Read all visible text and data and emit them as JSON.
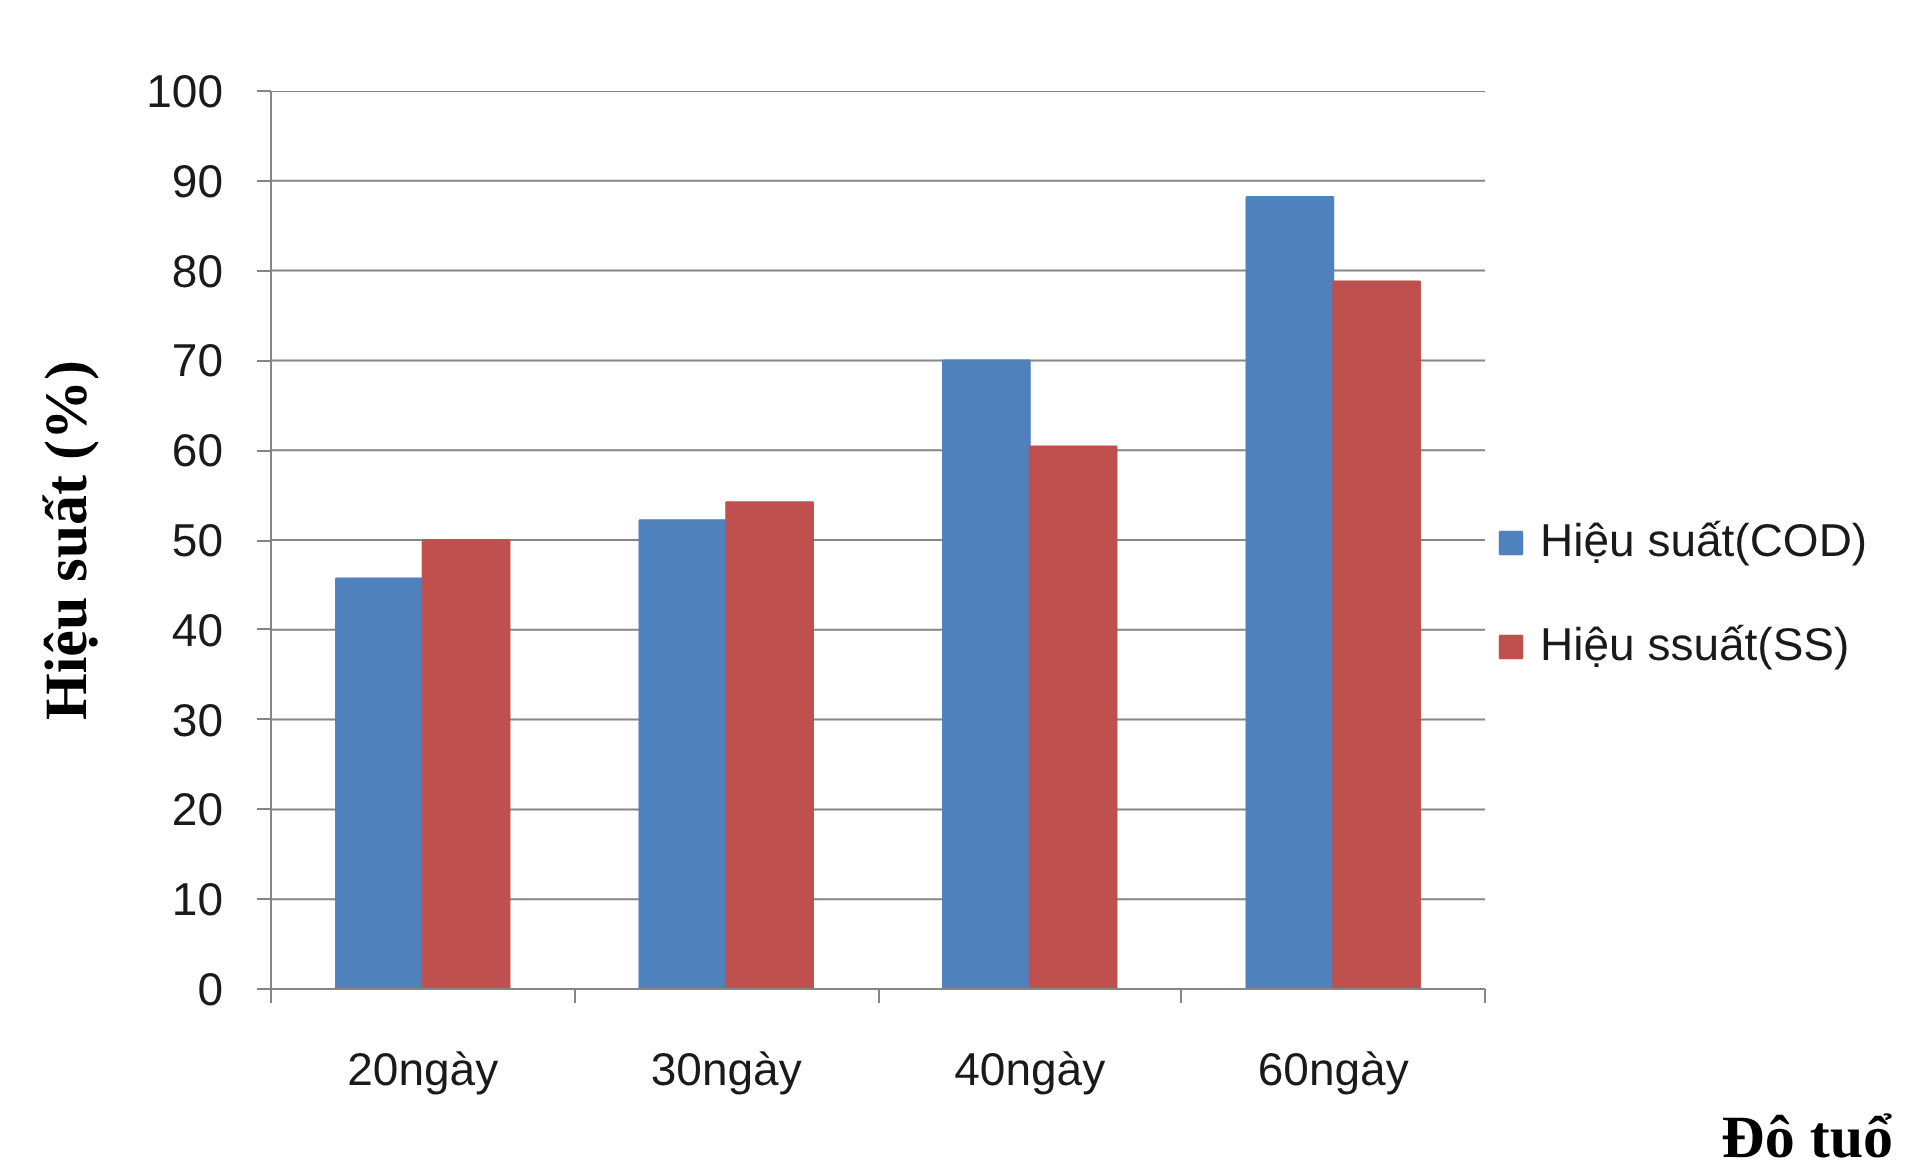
{
  "chart_data": {
    "type": "bar",
    "xlabel": "Đô tuổ",
    "ylabel": "Hiệu suất (%)",
    "categories": [
      "20ngày",
      "30ngày",
      "40ngày",
      "60ngày"
    ],
    "series": [
      {
        "name": "Hiệu suất(COD)",
        "color": "#4f81bd",
        "values": [
          45.7,
          52.2,
          70,
          88.2
        ]
      },
      {
        "name": "Hiệu ssuất(SS)",
        "color": "#c0504d",
        "values": [
          50,
          54.2,
          60.4,
          78.8
        ]
      }
    ],
    "ylim": [
      0,
      100
    ],
    "yticks": [
      0,
      10,
      20,
      30,
      40,
      50,
      60,
      70,
      80,
      90,
      100
    ],
    "grid": "y",
    "legend": "right"
  }
}
